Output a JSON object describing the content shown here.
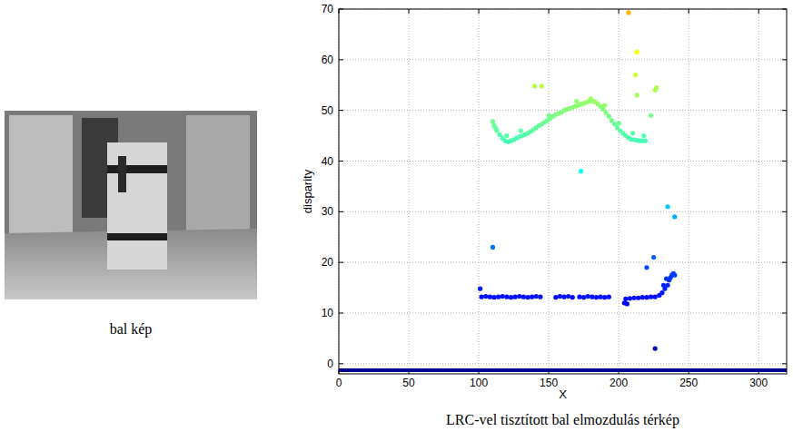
{
  "image": {
    "caption": "bal kép"
  },
  "chart_data": {
    "type": "scatter",
    "caption": "LRC-vel tisztított bal elmozdulás térkép",
    "x_label": "X",
    "y_label": "disparity",
    "xlim": [
      0,
      320
    ],
    "ylim": [
      -2,
      70
    ],
    "xticks": [
      0,
      50,
      100,
      150,
      200,
      250,
      300
    ],
    "yticks": [
      0,
      10,
      20,
      30,
      40,
      50,
      60,
      70
    ],
    "grid": true,
    "color_range": [
      -1,
      100
    ],
    "series": [
      {
        "type": "line",
        "color": "#00008f",
        "x": [
          0,
          320
        ],
        "values": [
          -1.3,
          -1.3
        ]
      },
      {
        "type": "scatter",
        "marker": "circle",
        "x": [
          110,
          111,
          112,
          113,
          115,
          117,
          119,
          121,
          123,
          125,
          127,
          129,
          131,
          133,
          135,
          137,
          139,
          141,
          143,
          145,
          147,
          149,
          151,
          153,
          155,
          157,
          159,
          161,
          163,
          165,
          167,
          169,
          171,
          173,
          175,
          177,
          179,
          181,
          183,
          185,
          187,
          189,
          191,
          193,
          195,
          197,
          199,
          201,
          203,
          205,
          207,
          209,
          211,
          213,
          215,
          217,
          219,
          120,
          130,
          150,
          170,
          180,
          190,
          200,
          210,
          218,
          102,
          105,
          108,
          111,
          114,
          117,
          120,
          123,
          126,
          129,
          132,
          135,
          138,
          141,
          144,
          155,
          158,
          161,
          164,
          167,
          172,
          175,
          178,
          181,
          184,
          187,
          190,
          193,
          205,
          208,
          211,
          214,
          217,
          220,
          223,
          226,
          229,
          231,
          232,
          233,
          234,
          235,
          236,
          237,
          238,
          239,
          240,
          204,
          206,
          140,
          145,
          173,
          110,
          101,
          207,
          213,
          212,
          213,
          227,
          226,
          223,
          235,
          240,
          225,
          220,
          226
        ],
        "values": [
          47.8,
          47,
          46.5,
          46,
          45.2,
          44.5,
          44,
          43.8,
          44,
          44.2,
          44.5,
          44.8,
          45,
          45.2,
          45.5,
          45.8,
          46.2,
          46.6,
          47,
          47.3,
          47.7,
          48,
          48.4,
          48.8,
          49.2,
          49.4,
          49.6,
          50,
          50.2,
          50.4,
          50.6,
          50.8,
          51,
          51.2,
          51.4,
          51.6,
          51.8,
          51.9,
          51.7,
          51.3,
          50.8,
          50.2,
          49.5,
          48.8,
          48,
          47.3,
          46.6,
          46,
          45.5,
          45,
          44.6,
          44.3,
          44.2,
          44.1,
          44,
          44,
          44,
          45,
          46,
          49,
          51.8,
          52.3,
          51,
          47.5,
          45.5,
          45,
          13.2,
          13.3,
          13.2,
          13.1,
          13.2,
          13.3,
          13.2,
          13.1,
          13.2,
          13.3,
          13.2,
          13.1,
          13.2,
          13.3,
          13.2,
          13.1,
          13.3,
          13.2,
          13.3,
          13.1,
          13.2,
          13.1,
          13.3,
          13.2,
          13.1,
          13.2,
          13.1,
          13.2,
          12.8,
          12.9,
          13,
          13,
          13.1,
          13.1,
          13.2,
          13.2,
          13.5,
          14,
          15.5,
          14.8,
          16.8,
          15.5,
          16.5,
          17,
          17.5,
          17.8,
          17.5,
          12,
          11.8,
          54.8,
          54.8,
          38,
          23,
          14.8,
          69.3,
          61.5,
          57,
          53,
          54.5,
          54,
          49,
          31,
          29,
          21,
          19,
          3
        ]
      }
    ]
  }
}
